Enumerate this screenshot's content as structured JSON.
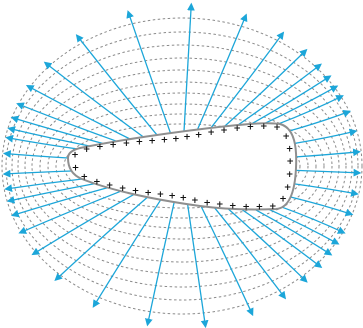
{
  "figure": {
    "charge_symbol": "+",
    "charge_count": 40
  },
  "colors": {
    "background": "#ffffff",
    "field_line": "#1ca6d9",
    "equipotential": "#8a8a8a",
    "conductor_outline": "#8f8f8f",
    "conductor_fill": "#ffffff",
    "charge": "#111111"
  }
}
